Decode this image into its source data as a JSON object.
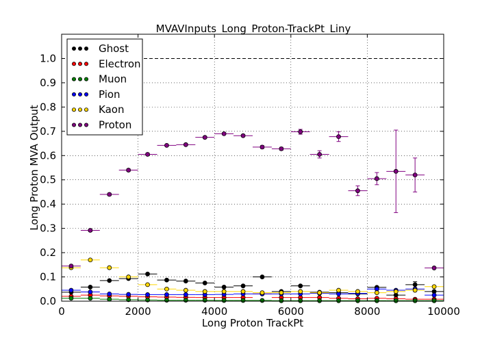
{
  "chart_data": {
    "type": "scatter",
    "title": "MVAVInputs_Long_Proton-TrackPt_Liny",
    "xlabel": "Long Proton TrackPt",
    "ylabel": "Long Proton MVA Output",
    "xlim": [
      0,
      10000
    ],
    "ylim": [
      0,
      1.1
    ],
    "xticks": [
      0,
      2000,
      4000,
      6000,
      8000,
      10000
    ],
    "yticks": [
      0.0,
      0.1,
      0.2,
      0.3,
      0.4,
      0.5,
      0.6,
      0.7,
      0.8,
      0.9,
      1.0
    ],
    "grid": true,
    "reference_line": 1.0,
    "legend_position": "top-left",
    "bin_edges": [
      0,
      500,
      1000,
      1500,
      2000,
      2500,
      3000,
      3500,
      4000,
      4500,
      5000,
      5500,
      6000,
      6500,
      7000,
      7500,
      8000,
      8500,
      9000,
      9500,
      10000
    ],
    "series": [
      {
        "name": "Ghost",
        "color": "#000000",
        "values": [
          0.037,
          0.058,
          0.085,
          0.093,
          0.112,
          0.087,
          0.083,
          0.075,
          0.058,
          0.063,
          0.1,
          0.04,
          0.063,
          0.037,
          0.035,
          0.03,
          0.057,
          0.025,
          0.068,
          0.04
        ],
        "errors": [
          0,
          0,
          0,
          0,
          0,
          0,
          0,
          0,
          0,
          0,
          0,
          0,
          0,
          0,
          0,
          0,
          0,
          0,
          0.012,
          0
        ]
      },
      {
        "name": "Electron",
        "color": "#ff0000",
        "values": [
          0.02,
          0.025,
          0.022,
          0.02,
          0.018,
          0.017,
          0.016,
          0.015,
          0.015,
          0.015,
          0.03,
          0.015,
          0.015,
          0.015,
          0.012,
          0.01,
          0.012,
          0.01,
          0.008,
          0.008
        ],
        "errors": [
          0,
          0,
          0,
          0,
          0,
          0,
          0,
          0,
          0,
          0,
          0,
          0,
          0,
          0,
          0,
          0,
          0,
          0,
          0,
          0
        ]
      },
      {
        "name": "Muon",
        "color": "#008000",
        "values": [
          0.012,
          0.012,
          0.008,
          0.006,
          0.005,
          0.004,
          0.004,
          0.004,
          0.003,
          0.003,
          0.003,
          0.002,
          0.002,
          0.002,
          0.002,
          0.002,
          0.002,
          0.002,
          0.002,
          0.002
        ],
        "errors": [
          0,
          0,
          0,
          0,
          0,
          0,
          0,
          0,
          0,
          0,
          0,
          0,
          0,
          0,
          0,
          0,
          0,
          0,
          0,
          0
        ]
      },
      {
        "name": "Pion",
        "color": "#0000ff",
        "values": [
          0.045,
          0.038,
          0.03,
          0.028,
          0.027,
          0.027,
          0.027,
          0.027,
          0.028,
          0.03,
          0.03,
          0.03,
          0.03,
          0.032,
          0.03,
          0.032,
          0.05,
          0.045,
          0.05,
          0.025
        ],
        "errors": [
          0,
          0,
          0,
          0,
          0,
          0,
          0,
          0,
          0,
          0,
          0,
          0,
          0,
          0,
          0,
          0,
          0,
          0,
          0,
          0
        ]
      },
      {
        "name": "Kaon",
        "color": "#ffd700",
        "values": [
          0.138,
          0.17,
          0.138,
          0.1,
          0.068,
          0.05,
          0.045,
          0.04,
          0.04,
          0.04,
          0.035,
          0.035,
          0.04,
          0.035,
          0.045,
          0.04,
          0.035,
          0.04,
          0.045,
          0.06
        ],
        "errors": [
          0,
          0,
          0,
          0,
          0,
          0,
          0,
          0,
          0,
          0,
          0,
          0,
          0,
          0,
          0,
          0,
          0,
          0,
          0,
          0
        ]
      },
      {
        "name": "Proton",
        "color": "#800080",
        "values": [
          0.145,
          0.292,
          0.44,
          0.54,
          0.605,
          0.642,
          0.645,
          0.675,
          0.69,
          0.682,
          0.635,
          0.628,
          0.698,
          0.605,
          0.678,
          0.455,
          0.505,
          0.535,
          0.52,
          0.137
        ],
        "errors": [
          0,
          0.005,
          0.005,
          0.005,
          0.005,
          0.004,
          0.004,
          0.004,
          0.004,
          0.004,
          0.006,
          0.006,
          0.01,
          0.015,
          0.02,
          0.02,
          0.025,
          0.17,
          0.07,
          0
        ]
      }
    ]
  }
}
